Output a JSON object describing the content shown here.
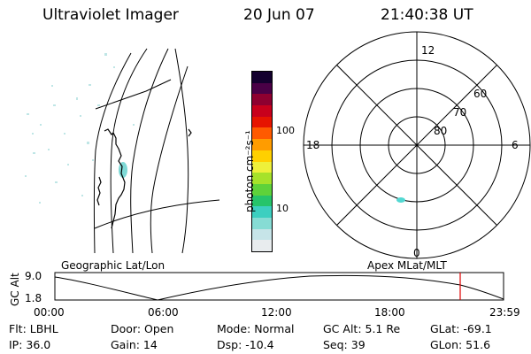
{
  "header": {
    "instrument": "Ultraviolet Imager",
    "date": "20 Jun 07",
    "time": "21:40:38 UT"
  },
  "colorbar": {
    "label": "photon cm⁻²s⁻¹",
    "ticks": [
      "100",
      "10"
    ],
    "colors": [
      "#e8ecee",
      "#c6e4e8",
      "#86dcd4",
      "#3ccfc0",
      "#26c46a",
      "#5ed23a",
      "#a6e22a",
      "#eef03a",
      "#ffd000",
      "#ff9c00",
      "#ff5a00",
      "#e61400",
      "#c8001c",
      "#8e0030",
      "#4a0046",
      "#14002e"
    ]
  },
  "polar_plot": {
    "mlt_labels": [
      "12",
      "18",
      "6",
      "0"
    ],
    "lat_labels": [
      "60",
      "70",
      "80"
    ]
  },
  "timeline": {
    "left_label": "Geographic Lat/Lon",
    "right_label": "Apex MLat/MLT",
    "axis_title": "GC Alt",
    "y_ticks": [
      "9.0",
      "1.8"
    ],
    "x_ticks": [
      "00:00",
      "06:00",
      "12:00",
      "18:00",
      "23:59"
    ],
    "marker_color": "#e00000",
    "current_time": "21:40"
  },
  "footer": {
    "filter": "Flt: LBHL",
    "ip": "IP: 36.0",
    "door": "Door: Open",
    "gain": "Gain: 14",
    "mode": "Mode: Normal",
    "dsp": "Dsp:  -10.4",
    "gc_alt": "GC Alt: 5.1 Re",
    "seq": "Seq: 39",
    "glat": "GLat: -69.1",
    "glon": "GLon:  51.6"
  }
}
